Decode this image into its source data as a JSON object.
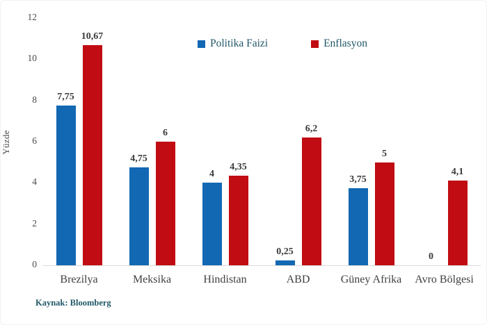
{
  "chart_data": {
    "type": "bar",
    "categories": [
      "Brezilya",
      "Meksika",
      "Hindistan",
      "ABD",
      "Güney Afrika",
      "Avro Bölgesi"
    ],
    "series": [
      {
        "name": "Politika Faizi",
        "color": "#1268B3",
        "values": [
          7.75,
          4.75,
          4,
          0.25,
          3.75,
          0
        ],
        "labels": [
          "7,75",
          "4,75",
          "4",
          "0,25",
          "3,75",
          "0"
        ]
      },
      {
        "name": "Enflasyon",
        "color": "#C00C12",
        "values": [
          10.67,
          6,
          4.35,
          6.2,
          5,
          4.1
        ],
        "labels": [
          "10,67",
          "6",
          "4,35",
          "6,2",
          "5",
          "4,1"
        ]
      }
    ],
    "title": "",
    "xlabel": "",
    "ylabel": "Yüzde",
    "ylim": [
      0,
      12
    ],
    "yticks": [
      0,
      2,
      4,
      6,
      8,
      10,
      12
    ],
    "grid": false,
    "legend_position": "top-center"
  },
  "source": {
    "label": "Kaynak: Bloomberg"
  },
  "colors": {
    "series_blue": "#1268B3",
    "series_red": "#C00C12",
    "legend_text": "#215868",
    "source_text": "#215868",
    "axis_text": "#4A4A4A",
    "value_text": "#3A3A3A",
    "baseline": "#D9D9D9"
  }
}
